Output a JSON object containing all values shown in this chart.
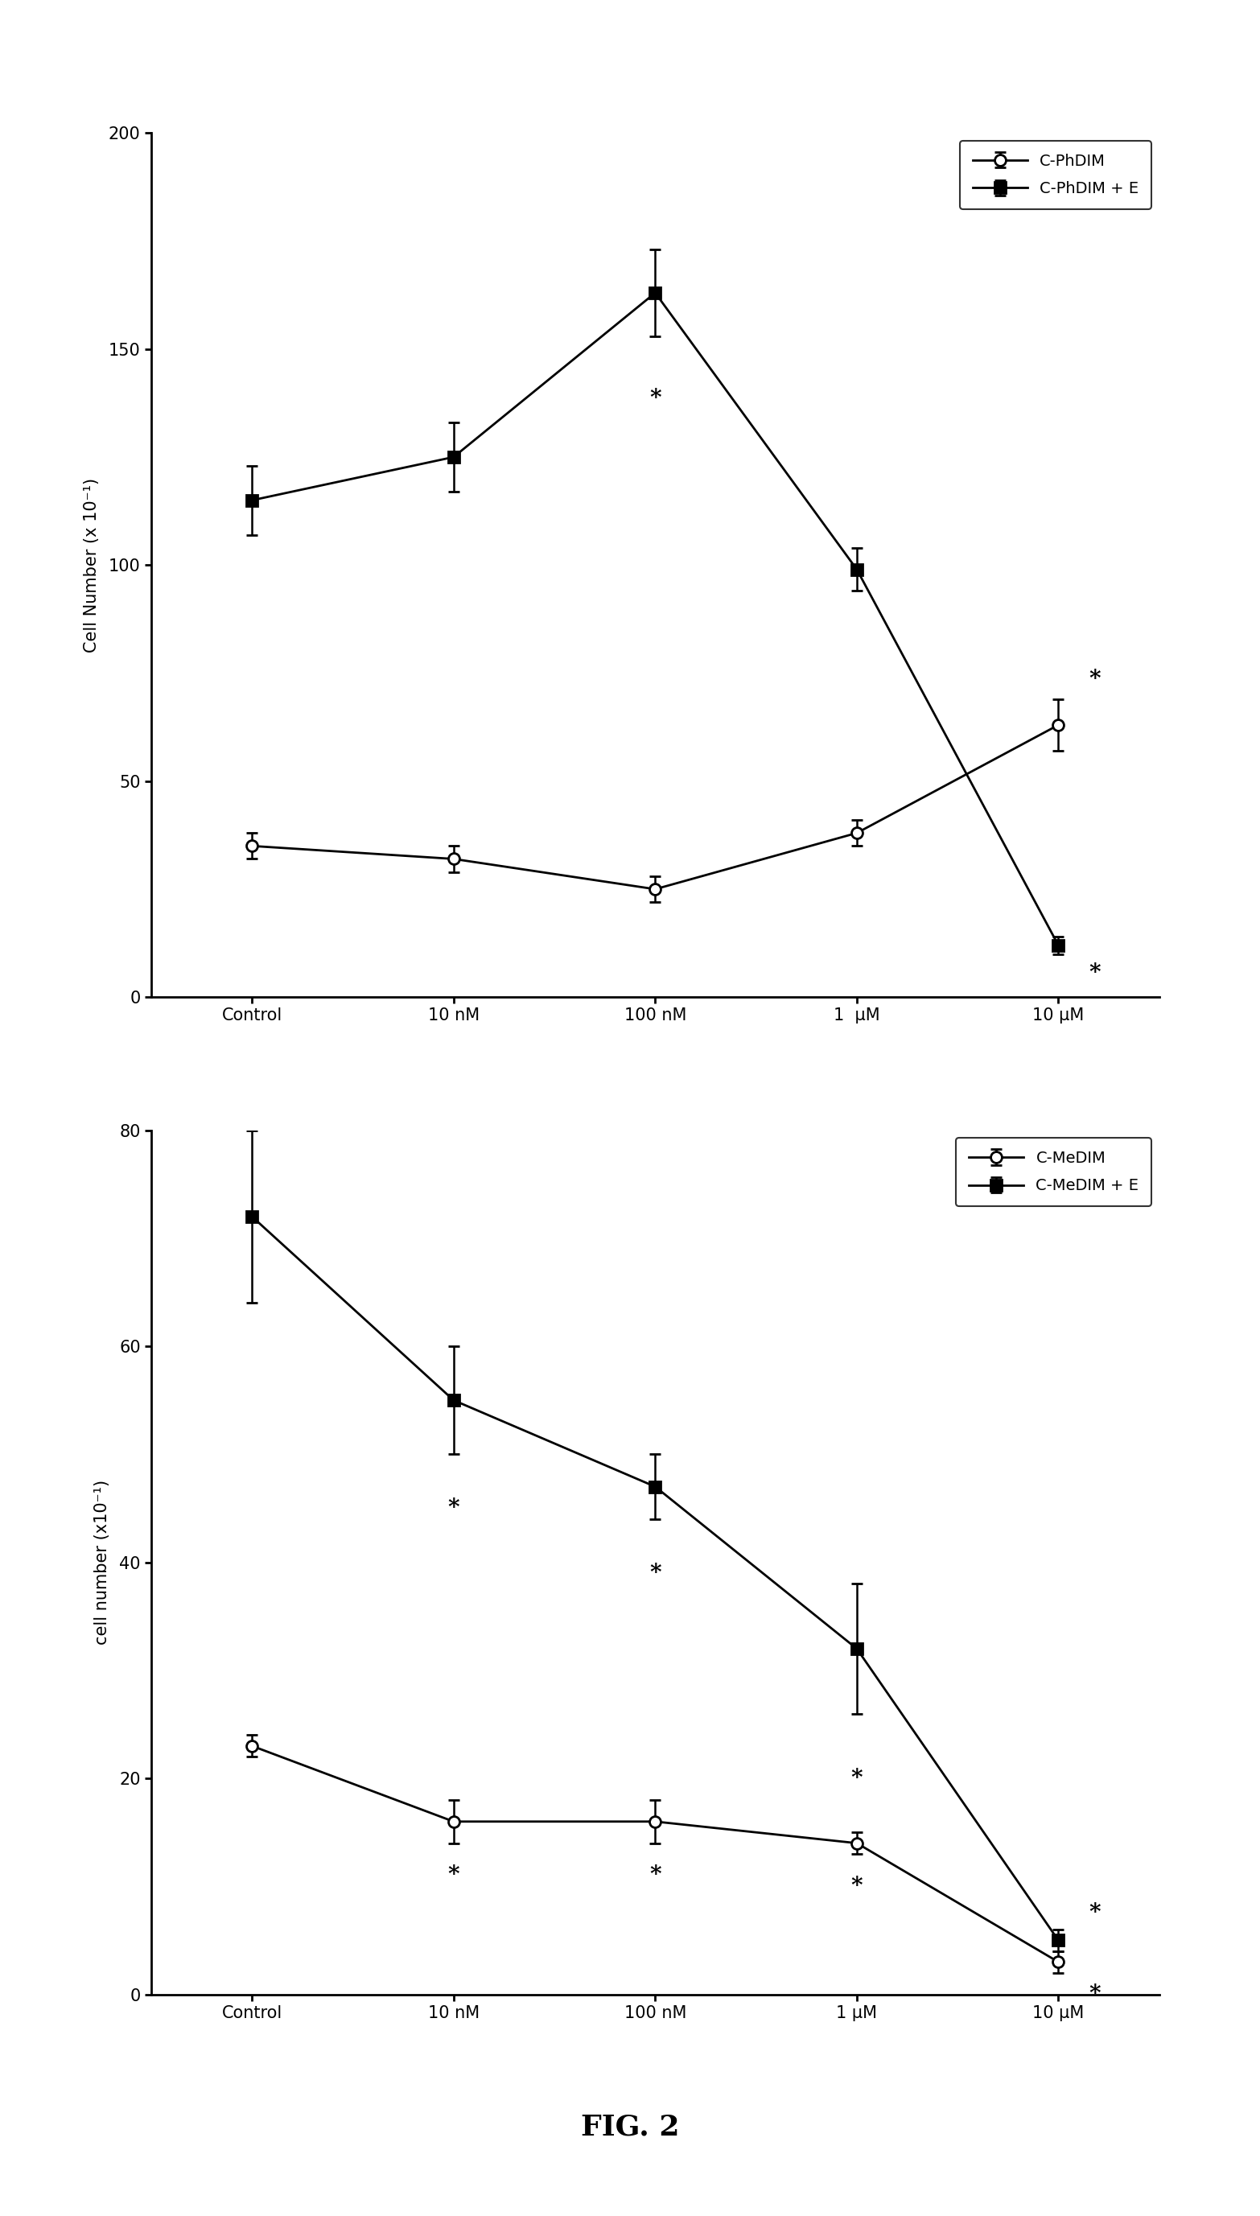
{
  "fig_title": "FIG. 2",
  "background_color": "#ffffff",
  "plot1": {
    "ylabel": "Cell Number (x 10⁻¹)",
    "ylim": [
      0,
      200
    ],
    "yticks": [
      0,
      50,
      100,
      150,
      200
    ],
    "xlabels": [
      "Control",
      "10 nM",
      "100 nM",
      "1  μM",
      "10 μM"
    ],
    "series1": {
      "label": "C-PhDIM",
      "marker": "o",
      "markerfacecolor": "white",
      "markeredgecolor": "black",
      "color": "black",
      "values": [
        35,
        32,
        25,
        38,
        63
      ],
      "yerr": [
        3,
        3,
        3,
        3,
        6
      ]
    },
    "series2": {
      "label": "C-PhDIM + E",
      "marker": "s",
      "markerfacecolor": "black",
      "markeredgecolor": "black",
      "color": "black",
      "values": [
        115,
        125,
        163,
        99,
        12
      ],
      "yerr": [
        8,
        8,
        10,
        5,
        2
      ]
    }
  },
  "plot2": {
    "ylabel": "cell number (x10⁻¹)",
    "ylim": [
      0,
      80
    ],
    "yticks": [
      0,
      20,
      40,
      60,
      80
    ],
    "xlabels": [
      "Control",
      "10 nM",
      "100 nM",
      "1 μM",
      "10 μM"
    ],
    "series1": {
      "label": "C-MeDIM",
      "marker": "o",
      "markerfacecolor": "white",
      "markeredgecolor": "black",
      "color": "black",
      "values": [
        23,
        16,
        16,
        14,
        3
      ],
      "yerr": [
        1,
        2,
        2,
        1,
        1
      ]
    },
    "series2": {
      "label": "C-MeDIM + E",
      "marker": "s",
      "markerfacecolor": "black",
      "markeredgecolor": "black",
      "color": "black",
      "values": [
        72,
        55,
        47,
        32,
        5
      ],
      "yerr": [
        8,
        5,
        3,
        6,
        1
      ]
    }
  }
}
